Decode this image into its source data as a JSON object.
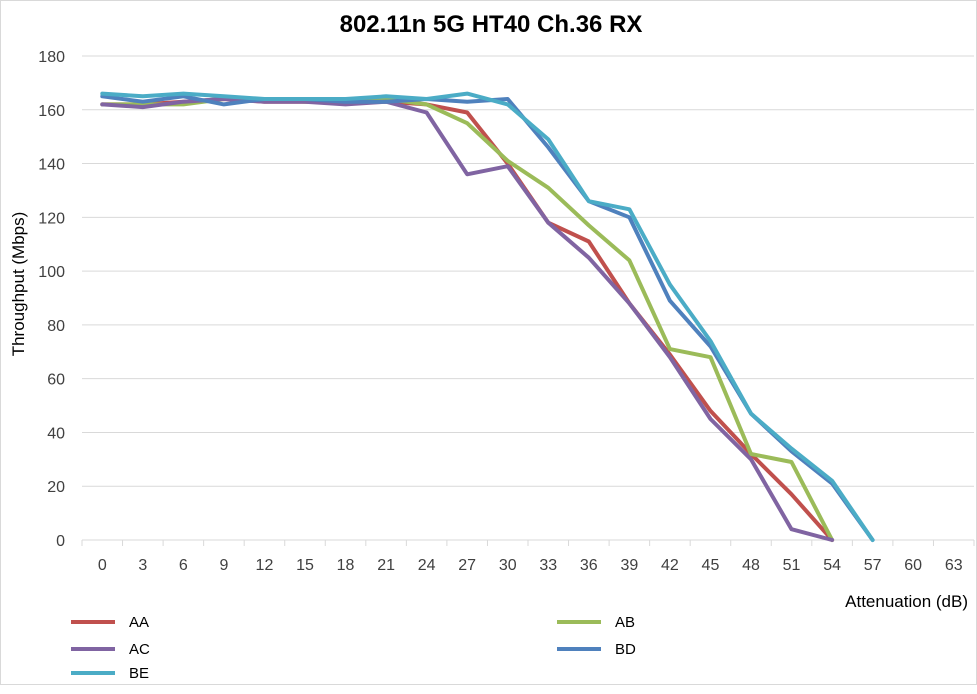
{
  "chart_data": {
    "type": "line",
    "title": "802.11n 5G HT40 Ch.36 RX",
    "xlabel": "Attenuation (dB)",
    "ylabel": "Throughput (Mbps)",
    "x": [
      0,
      3,
      6,
      9,
      12,
      15,
      18,
      21,
      24,
      27,
      30,
      33,
      36,
      39,
      42,
      45,
      48,
      51,
      54,
      57,
      60,
      63
    ],
    "ylim": [
      0,
      180
    ],
    "yticks": [
      0,
      20,
      40,
      60,
      80,
      100,
      120,
      140,
      160,
      180
    ],
    "grid": true,
    "legend": "bottom",
    "series": [
      {
        "name": "AA",
        "color": "#c0504d",
        "values": [
          162,
          162,
          163,
          164,
          163,
          163,
          163,
          163,
          162,
          159,
          140,
          118,
          111,
          88,
          69,
          48,
          32,
          17,
          0,
          null,
          null,
          null
        ]
      },
      {
        "name": "AB",
        "color": "#9bbb59",
        "values": [
          162,
          162,
          162,
          164,
          164,
          163,
          164,
          164,
          162,
          155,
          141,
          131,
          117,
          104,
          71,
          68,
          32,
          29,
          0,
          null,
          null,
          null
        ]
      },
      {
        "name": "AC",
        "color": "#8064a2",
        "values": [
          162,
          161,
          163,
          164,
          163,
          163,
          162,
          163,
          159,
          136,
          139,
          118,
          105,
          88,
          68,
          45,
          30,
          4,
          0,
          null,
          null,
          null
        ]
      },
      {
        "name": "BD",
        "color": "#4f81bd",
        "values": [
          165,
          163,
          165,
          162,
          164,
          164,
          163,
          163,
          164,
          163,
          164,
          146,
          126,
          120,
          89,
          72,
          47,
          33,
          21,
          0,
          null,
          null
        ]
      },
      {
        "name": "BE",
        "color": "#4bacc6",
        "values": [
          166,
          165,
          166,
          165,
          164,
          164,
          164,
          165,
          164,
          166,
          162,
          149,
          126,
          123,
          95,
          74,
          47,
          34,
          22,
          0,
          null,
          null
        ]
      }
    ]
  }
}
